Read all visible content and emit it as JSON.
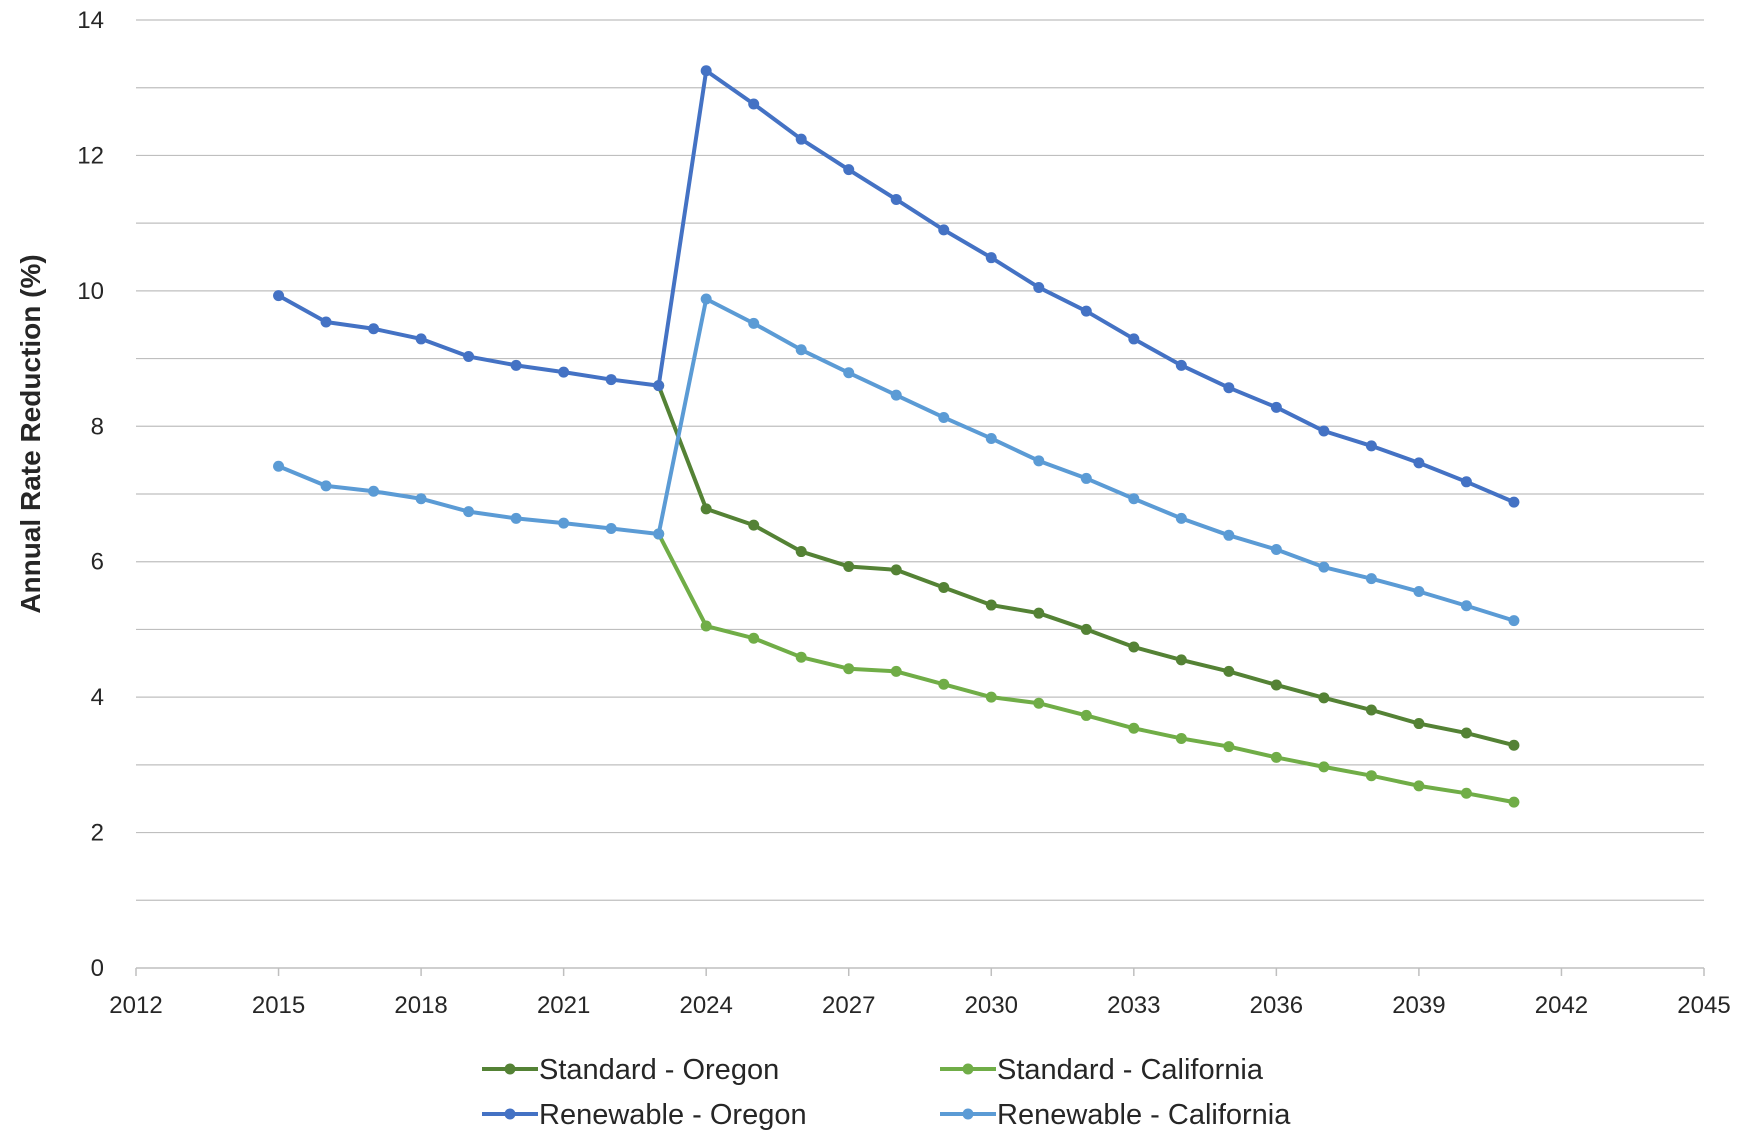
{
  "chart_data": {
    "type": "line",
    "title": "",
    "xlabel": "",
    "ylabel": "Annual Rate Reduction (%)",
    "xlim": [
      2012,
      2045
    ],
    "ylim": [
      0,
      14
    ],
    "x_ticks": [
      "2012",
      "2015",
      "2018",
      "2021",
      "2024",
      "2027",
      "2030",
      "2033",
      "2036",
      "2039",
      "2042",
      "2045"
    ],
    "y_ticks": [
      "0",
      "2",
      "4",
      "6",
      "8",
      "10",
      "12",
      "14"
    ],
    "grid": true,
    "legend_position": "bottom",
    "x": [
      2015,
      2016,
      2017,
      2018,
      2019,
      2020,
      2021,
      2022,
      2023,
      2024,
      2025,
      2026,
      2027,
      2028,
      2029,
      2030,
      2031,
      2032,
      2033,
      2034,
      2035,
      2036,
      2037,
      2038,
      2039,
      2040,
      2041
    ],
    "series": [
      {
        "name": "Standard - Oregon",
        "color": "#548235",
        "x": [
          2023,
          2024,
          2025,
          2026,
          2027,
          2028,
          2029,
          2030,
          2031,
          2032,
          2033,
          2034,
          2035,
          2036,
          2037,
          2038,
          2039,
          2040,
          2041
        ],
        "values": [
          8.6,
          6.78,
          6.54,
          6.15,
          5.93,
          5.88,
          5.62,
          5.36,
          5.24,
          5.0,
          4.74,
          4.55,
          4.38,
          4.18,
          3.99,
          3.81,
          3.61,
          3.47,
          3.29
        ]
      },
      {
        "name": "Standard - California",
        "color": "#70AD47",
        "x": [
          2023,
          2024,
          2025,
          2026,
          2027,
          2028,
          2029,
          2030,
          2031,
          2032,
          2033,
          2034,
          2035,
          2036,
          2037,
          2038,
          2039,
          2040,
          2041
        ],
        "values": [
          6.41,
          5.05,
          4.87,
          4.59,
          4.42,
          4.38,
          4.19,
          4.0,
          3.91,
          3.73,
          3.54,
          3.39,
          3.27,
          3.11,
          2.97,
          2.84,
          2.69,
          2.58,
          2.45
        ]
      },
      {
        "name": "Renewable - Oregon",
        "color": "#4472C4",
        "x": [
          2015,
          2016,
          2017,
          2018,
          2019,
          2020,
          2021,
          2022,
          2023,
          2024,
          2025,
          2026,
          2027,
          2028,
          2029,
          2030,
          2031,
          2032,
          2033,
          2034,
          2035,
          2036,
          2037,
          2038,
          2039,
          2040,
          2041
        ],
        "values": [
          9.93,
          9.54,
          9.44,
          9.29,
          9.03,
          8.9,
          8.8,
          8.69,
          8.6,
          13.25,
          12.76,
          12.24,
          11.79,
          11.35,
          10.9,
          10.49,
          10.05,
          9.7,
          9.29,
          8.9,
          8.57,
          8.28,
          7.93,
          7.71,
          7.46,
          7.18,
          6.88
        ]
      },
      {
        "name": "Renewable - California",
        "color": "#5B9BD5",
        "x": [
          2015,
          2016,
          2017,
          2018,
          2019,
          2020,
          2021,
          2022,
          2023,
          2024,
          2025,
          2026,
          2027,
          2028,
          2029,
          2030,
          2031,
          2032,
          2033,
          2034,
          2035,
          2036,
          2037,
          2038,
          2039,
          2040,
          2041
        ],
        "values": [
          7.41,
          7.12,
          7.04,
          6.93,
          6.74,
          6.64,
          6.57,
          6.49,
          6.41,
          9.88,
          9.52,
          9.13,
          8.79,
          8.46,
          8.13,
          7.82,
          7.49,
          7.23,
          6.93,
          6.64,
          6.39,
          6.18,
          5.92,
          5.75,
          5.56,
          5.35,
          5.13
        ]
      }
    ],
    "legend_rows": [
      [
        "Standard - Oregon",
        "Standard - California"
      ],
      [
        "Renewable - Oregon",
        "Renewable - California"
      ]
    ],
    "gridline_color": "#BFBFBF",
    "axis_line_color": "#BFBFBF"
  }
}
